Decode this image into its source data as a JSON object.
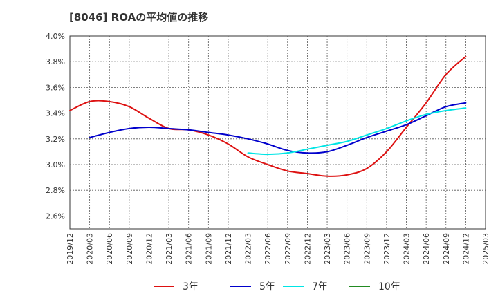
{
  "chart_data": {
    "type": "line",
    "title": "[8046]  ROAの平均値の推移",
    "xlabel": "",
    "ylabel": "",
    "ylim": [
      2.5,
      4.0
    ],
    "y_ticks": [
      2.6,
      2.8,
      3.0,
      3.2,
      3.4,
      3.6,
      3.8,
      4.0
    ],
    "y_tick_labels": [
      "2.6%",
      "2.8%",
      "3.0%",
      "3.2%",
      "3.4%",
      "3.6%",
      "3.8%",
      "4.0%"
    ],
    "x_tick_labels": [
      "2019/12",
      "2020/03",
      "2020/06",
      "2020/09",
      "2020/12",
      "2021/03",
      "2021/06",
      "2021/09",
      "2021/12",
      "2022/03",
      "2022/06",
      "2022/09",
      "2022/12",
      "2023/03",
      "2023/06",
      "2023/09",
      "2023/12",
      "2024/03",
      "2024/06",
      "2024/09",
      "2024/12",
      "2025/03"
    ],
    "grid": true,
    "legend_position": "bottom",
    "series": [
      {
        "name": "3年",
        "color": "#dd1111",
        "x": [
          "2019/12",
          "2020/03",
          "2020/06",
          "2020/09",
          "2020/12",
          "2021/03",
          "2021/06",
          "2021/09",
          "2021/12",
          "2022/03",
          "2022/06",
          "2022/09",
          "2022/12",
          "2023/03",
          "2023/06",
          "2023/09",
          "2023/12",
          "2024/03",
          "2024/06",
          "2024/09",
          "2024/12"
        ],
        "values": [
          3.42,
          3.49,
          3.49,
          3.45,
          3.36,
          3.28,
          3.27,
          3.23,
          3.16,
          3.06,
          3.0,
          2.95,
          2.93,
          2.91,
          2.92,
          2.97,
          3.1,
          3.29,
          3.48,
          3.7,
          3.84
        ]
      },
      {
        "name": "5年",
        "color": "#0000cc",
        "x": [
          "2020/03",
          "2020/06",
          "2020/09",
          "2020/12",
          "2021/03",
          "2021/06",
          "2021/09",
          "2021/12",
          "2022/03",
          "2022/06",
          "2022/09",
          "2022/12",
          "2023/03",
          "2023/06",
          "2023/09",
          "2023/12",
          "2024/03",
          "2024/06",
          "2024/09",
          "2024/12"
        ],
        "values": [
          3.21,
          3.25,
          3.28,
          3.29,
          3.28,
          3.27,
          3.25,
          3.23,
          3.2,
          3.16,
          3.11,
          3.09,
          3.1,
          3.15,
          3.21,
          3.26,
          3.31,
          3.38,
          3.45,
          3.48
        ]
      },
      {
        "name": "7年",
        "color": "#00e5e5",
        "x": [
          "2022/03",
          "2022/06",
          "2022/09",
          "2022/12",
          "2023/03",
          "2023/06",
          "2023/09",
          "2023/12",
          "2024/03",
          "2024/06",
          "2024/09",
          "2024/12"
        ],
        "values": [
          3.09,
          3.08,
          3.09,
          3.12,
          3.15,
          3.18,
          3.23,
          3.28,
          3.34,
          3.39,
          3.42,
          3.44
        ]
      },
      {
        "name": "10年",
        "color": "#228b22",
        "x": [],
        "values": []
      }
    ]
  }
}
